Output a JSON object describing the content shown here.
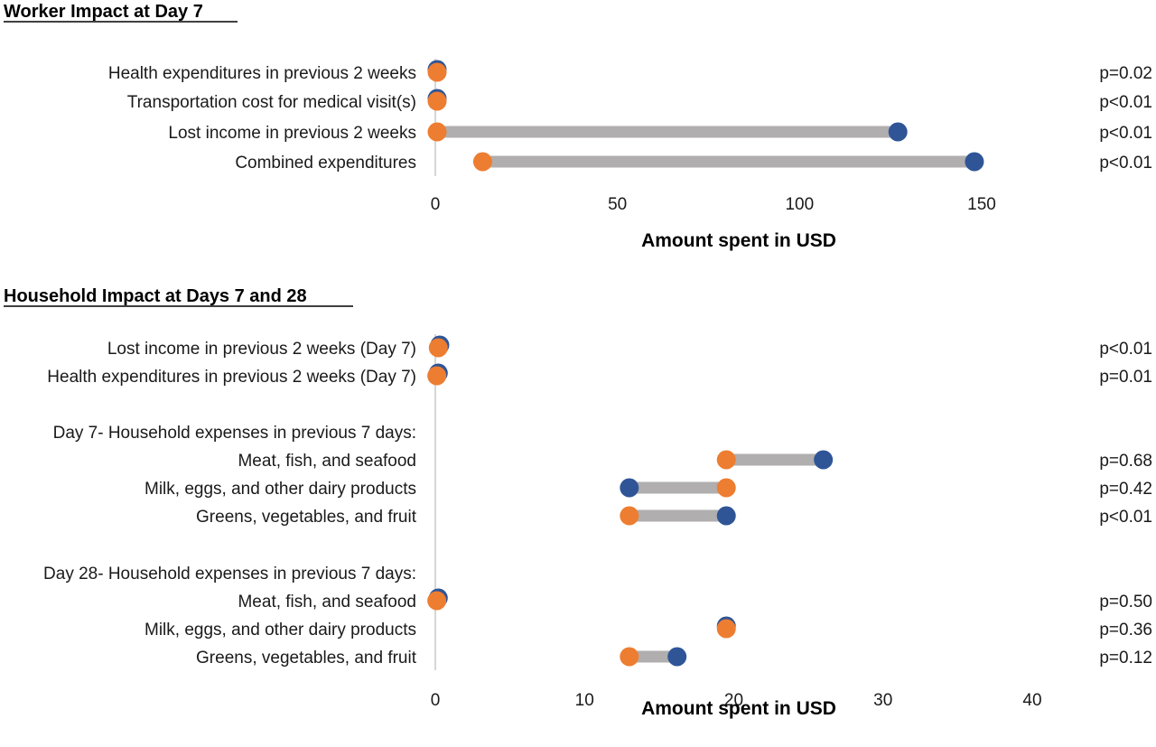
{
  "colors": {
    "series_a": "#2f5597",
    "series_b": "#ed7d31",
    "connector": "#b0aeae",
    "axis": "#c8c8c8"
  },
  "chart_data": [
    {
      "type": "dumbbell",
      "title": "Worker Impact at Day 7",
      "xlabel": "Amount spent in USD",
      "xlim": [
        0,
        150
      ],
      "xticks": [
        0,
        50,
        100,
        150
      ],
      "rows": [
        {
          "label": "Health expenditures in previous 2 weeks",
          "a": 0.5,
          "b": 0.5,
          "p": "p=0.02"
        },
        {
          "label": "Transportation cost for medical visit(s)",
          "a": 0.5,
          "b": 0.5,
          "p": "p<0.01"
        },
        {
          "label": "Lost income in previous 2 weeks",
          "a": 127,
          "b": 0.5,
          "p": "p<0.01"
        },
        {
          "label": "Combined expenditures",
          "a": 148,
          "b": 13,
          "p": "p<0.01"
        }
      ]
    },
    {
      "type": "dumbbell",
      "title": "Household Impact at Days 7 and 28",
      "xlabel": "Amount spent in USD",
      "xlim": [
        0,
        40
      ],
      "xticks": [
        0,
        10,
        20,
        30,
        40
      ],
      "rows": [
        {
          "label": "Lost income in previous 2 weeks (Day 7)",
          "a": 0.3,
          "b": 0.2,
          "p": "p<0.01"
        },
        {
          "label": "Health expenditures in previous 2 weeks (Day 7)",
          "a": 0.2,
          "b": 0.1,
          "p": "p=0.01"
        },
        {
          "label": "Day 7- Household expenses in previous 7 days:",
          "header": true
        },
        {
          "label": "Meat, fish, and seafood",
          "a": 26,
          "b": 19.5,
          "p": "p=0.68"
        },
        {
          "label": "Milk, eggs, and other dairy products",
          "a": 13,
          "b": 19.5,
          "p": "p=0.42"
        },
        {
          "label": "Greens, vegetables, and fruit",
          "a": 19.5,
          "b": 13,
          "p": "p<0.01"
        },
        {
          "label": "Day 28- Household expenses in previous 7 days:",
          "header": true
        },
        {
          "label": "Meat, fish, and seafood",
          "a": 0.2,
          "b": 0.1,
          "p": "p=0.50"
        },
        {
          "label": "Milk, eggs, and other dairy products",
          "a": 19.5,
          "b": 19.5,
          "p": "p=0.36"
        },
        {
          "label": "Greens, vegetables, and fruit",
          "a": 16.2,
          "b": 13,
          "p": "p=0.12"
        }
      ]
    }
  ]
}
